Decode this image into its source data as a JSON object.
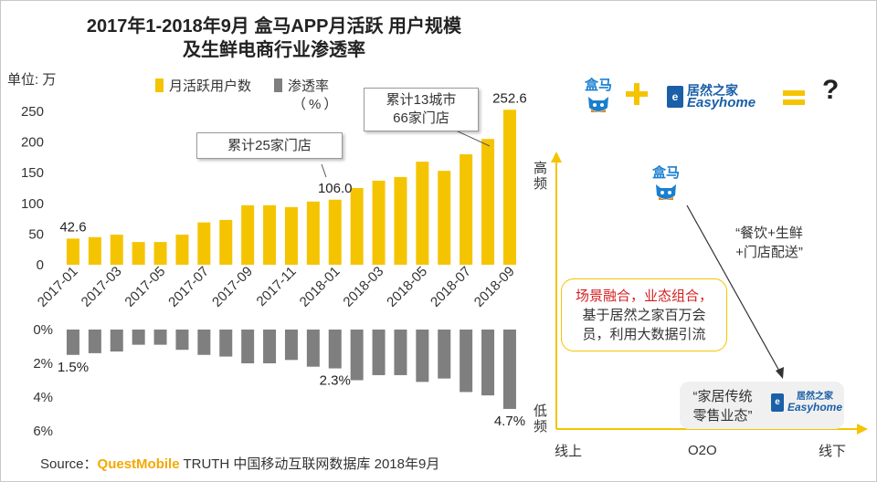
{
  "title_line1": "2017年1-2018年9月 盒马APP月活跃 用户规模",
  "title_line2": "及生鲜电商行业渗透率",
  "unit_label": "单位: 万",
  "legend": {
    "mau_label": "月活跃用户数",
    "mau_color": "#f5c400",
    "pen_label": "渗透率",
    "pen_sub": "（%）",
    "pen_color": "#7f7f7f"
  },
  "callouts": {
    "c1": "累计25家门店",
    "c2_line1": "累计13城市",
    "c2_line2": "66家门店"
  },
  "source": {
    "prefix": "Source：",
    "brand": "QuestMobile",
    "rest": " TRUTH 中国移动互联网数据库 2018年9月"
  },
  "right": {
    "hema_name": "盒马",
    "jr_cn": "居然之家",
    "jr_en": "Easyhome",
    "plus": "+",
    "equals": "=",
    "question": "?",
    "y_high": "高频",
    "y_low": "低频",
    "x_left": "线上",
    "x_mid": "O2O",
    "x_right": "线下",
    "quote1_line1": "“餐饮+生鲜",
    "quote1_line2": "+门店配送”",
    "box_red": "场景融合，业态组合，",
    "box_line2": "基于居然之家百万会",
    "box_line3": "员，利用大数据引流",
    "quote2_line1": "“家居传统",
    "quote2_line2": "零售业态”"
  },
  "chart_data": [
    {
      "type": "bar",
      "title": "2017年1-2018年9月 盒马APP月活跃 用户规模 及生鲜电商行业渗透率",
      "ylabel": "单位: 万",
      "series": [
        {
          "name": "月活跃用户数",
          "color": "#f5c400",
          "values": [
            42.6,
            45,
            49,
            37,
            37,
            49,
            69,
            73,
            97,
            97,
            94,
            103,
            106.0,
            125,
            137,
            143,
            168,
            153,
            180,
            205,
            252.6
          ]
        }
      ],
      "categories": [
        "2017-01",
        "2017-02",
        "2017-03",
        "2017-04",
        "2017-05",
        "2017-06",
        "2017-07",
        "2017-08",
        "2017-09",
        "2017-10",
        "2017-11",
        "2017-12",
        "2018-01",
        "2018-02",
        "2018-03",
        "2018-04",
        "2018-05",
        "2018-06",
        "2018-07",
        "2018-08",
        "2018-09"
      ],
      "tick_labels": [
        "2017-01",
        "2017-03",
        "2017-05",
        "2017-07",
        "2017-09",
        "2017-11",
        "2018-01",
        "2018-03",
        "2018-05",
        "2018-07",
        "2018-09"
      ],
      "data_labels": [
        {
          "index": 0,
          "text": "42.6"
        },
        {
          "index": 12,
          "text": "106.0"
        },
        {
          "index": 20,
          "text": "252.6"
        }
      ],
      "yticks": [
        0,
        50,
        100,
        150,
        200,
        250
      ],
      "ylim": [
        0,
        260
      ],
      "grid": false
    },
    {
      "type": "bar",
      "series": [
        {
          "name": "渗透率",
          "unit": "%",
          "color": "#7f7f7f",
          "values": [
            1.5,
            1.4,
            1.3,
            0.9,
            0.9,
            1.2,
            1.5,
            1.6,
            2.0,
            2.0,
            1.8,
            2.2,
            2.3,
            3.0,
            2.7,
            2.7,
            3.1,
            2.9,
            3.7,
            3.9,
            4.7
          ]
        }
      ],
      "categories": [
        "2017-01",
        "2017-02",
        "2017-03",
        "2017-04",
        "2017-05",
        "2017-06",
        "2017-07",
        "2017-08",
        "2017-09",
        "2017-10",
        "2017-11",
        "2017-12",
        "2018-01",
        "2018-02",
        "2018-03",
        "2018-04",
        "2018-05",
        "2018-06",
        "2018-07",
        "2018-08",
        "2018-09"
      ],
      "data_labels": [
        {
          "index": 0,
          "text": "1.5%"
        },
        {
          "index": 12,
          "text": "2.3%"
        },
        {
          "index": 20,
          "text": "4.7%"
        }
      ],
      "yticks": [
        "0%",
        "2%",
        "4%",
        "6%"
      ],
      "ylim": [
        0,
        6
      ],
      "inverted": true,
      "grid": false
    }
  ]
}
